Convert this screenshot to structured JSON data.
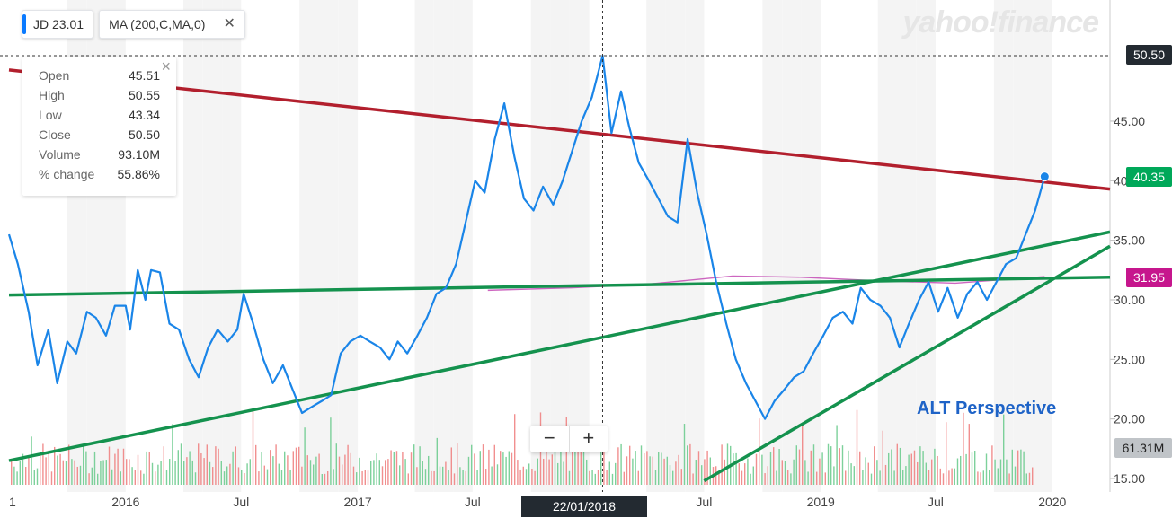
{
  "legend": {
    "symbol": "JD",
    "symbol_value": "23.01",
    "indicator": "MA (200,C,MA,0)",
    "close_icon": "close-x"
  },
  "tooltip": {
    "rows": [
      {
        "label": "Open",
        "value": "45.51"
      },
      {
        "label": "High",
        "value": "50.55"
      },
      {
        "label": "Low",
        "value": "43.34"
      },
      {
        "label": "Close",
        "value": "50.50"
      },
      {
        "label": "Volume",
        "value": "93.10M"
      },
      {
        "label": "% change",
        "value": "55.86%"
      }
    ]
  },
  "watermark": "yahoo!finance",
  "price_tags": {
    "crosshair": "50.50",
    "last": "40.35",
    "ma": "31.95",
    "volume": "61.31M"
  },
  "annotation": "ALT Perspective",
  "crosshair_date": "22/01/2018",
  "zoom": {
    "minus": "−",
    "plus": "+"
  },
  "colors": {
    "price_line": "#1a85e8",
    "ma_line": "#c040b0",
    "resistance_line": "#b21f2d",
    "support_line": "#14924e",
    "up_volume": "#66c98a",
    "down_volume": "#ee7b7b",
    "tag_green": "#00a859",
    "tag_magenta": "#c6168d",
    "tag_dark": "#232a31",
    "tag_gray": "#c0c4c8"
  },
  "chart_data": {
    "type": "line",
    "ylim": [
      15,
      51
    ],
    "y_ticks": [
      15,
      20,
      25,
      30,
      35,
      40,
      45
    ],
    "y_tick_labels": [
      "15.00",
      "20.00",
      "25.00",
      "30.00",
      "35.00",
      "40.00",
      "45.00"
    ],
    "x_tick_labels": [
      "1",
      "2016",
      "Jul",
      "2017",
      "Jul",
      "2018",
      "Jul",
      "2019",
      "Jul",
      "2020"
    ],
    "x_tick_dates": [
      "2015-07-01",
      "2016-01-01",
      "2016-07-01",
      "2017-01-01",
      "2017-07-01",
      "2018-01-01",
      "2018-07-01",
      "2019-01-01",
      "2019-07-01",
      "2020-01-01"
    ],
    "xlim": [
      "2015-07-01",
      "2020-04-01"
    ],
    "series": [
      {
        "points": [
          [
            "2015-07-01",
            35.5
          ],
          [
            "2015-07-15",
            33.0
          ],
          [
            "2015-08-01",
            29.0
          ],
          [
            "2015-08-15",
            24.5
          ],
          [
            "2015-09-01",
            27.5
          ],
          [
            "2015-09-15",
            23.0
          ],
          [
            "2015-10-01",
            26.5
          ],
          [
            "2015-10-15",
            25.5
          ],
          [
            "2015-11-01",
            29.0
          ],
          [
            "2015-11-15",
            28.5
          ],
          [
            "2015-12-01",
            27.0
          ],
          [
            "2015-12-15",
            29.5
          ],
          [
            "2016-01-01",
            29.5
          ],
          [
            "2016-01-08",
            27.5
          ],
          [
            "2016-01-20",
            32.5
          ],
          [
            "2016-02-01",
            30.0
          ],
          [
            "2016-02-10",
            32.5
          ],
          [
            "2016-02-24",
            32.3
          ],
          [
            "2016-03-10",
            28.0
          ],
          [
            "2016-03-25",
            27.5
          ],
          [
            "2016-04-10",
            25.0
          ],
          [
            "2016-04-25",
            23.5
          ],
          [
            "2016-05-10",
            26.0
          ],
          [
            "2016-05-25",
            27.5
          ],
          [
            "2016-06-10",
            26.5
          ],
          [
            "2016-06-25",
            27.5
          ],
          [
            "2016-07-05",
            30.5
          ],
          [
            "2016-07-20",
            28.0
          ],
          [
            "2016-08-05",
            25.0
          ],
          [
            "2016-08-20",
            23.0
          ],
          [
            "2016-09-05",
            24.5
          ],
          [
            "2016-09-20",
            22.5
          ],
          [
            "2016-10-05",
            20.5
          ],
          [
            "2016-10-20",
            21.0
          ],
          [
            "2016-11-05",
            21.5
          ],
          [
            "2016-11-20",
            22.0
          ],
          [
            "2016-12-05",
            25.5
          ],
          [
            "2016-12-20",
            26.5
          ],
          [
            "2017-01-05",
            27.0
          ],
          [
            "2017-01-20",
            26.5
          ],
          [
            "2017-02-05",
            26.0
          ],
          [
            "2017-02-20",
            25.0
          ],
          [
            "2017-03-05",
            26.5
          ],
          [
            "2017-03-20",
            25.5
          ],
          [
            "2017-04-05",
            27.0
          ],
          [
            "2017-04-20",
            28.5
          ],
          [
            "2017-05-05",
            30.5
          ],
          [
            "2017-05-20",
            31.0
          ],
          [
            "2017-06-05",
            33.0
          ],
          [
            "2017-06-20",
            36.5
          ],
          [
            "2017-07-05",
            40.0
          ],
          [
            "2017-07-20",
            39.0
          ],
          [
            "2017-08-05",
            43.5
          ],
          [
            "2017-08-20",
            46.5
          ],
          [
            "2017-09-05",
            42.0
          ],
          [
            "2017-09-20",
            38.5
          ],
          [
            "2017-10-05",
            37.5
          ],
          [
            "2017-10-20",
            39.5
          ],
          [
            "2017-11-05",
            38.0
          ],
          [
            "2017-11-20",
            40.0
          ],
          [
            "2017-12-05",
            42.5
          ],
          [
            "2017-12-20",
            45.0
          ],
          [
            "2018-01-05",
            47.0
          ],
          [
            "2018-01-22",
            50.5
          ],
          [
            "2018-02-05",
            44.0
          ],
          [
            "2018-02-20",
            47.5
          ],
          [
            "2018-03-05",
            44.5
          ],
          [
            "2018-03-20",
            41.5
          ],
          [
            "2018-04-05",
            40.0
          ],
          [
            "2018-04-20",
            38.5
          ],
          [
            "2018-05-05",
            37.0
          ],
          [
            "2018-05-20",
            36.5
          ],
          [
            "2018-06-05",
            43.5
          ],
          [
            "2018-06-20",
            39.0
          ],
          [
            "2018-07-05",
            35.5
          ],
          [
            "2018-07-20",
            31.5
          ],
          [
            "2018-08-05",
            28.0
          ],
          [
            "2018-08-20",
            25.0
          ],
          [
            "2018-09-05",
            23.0
          ],
          [
            "2018-09-20",
            21.5
          ],
          [
            "2018-10-05",
            20.0
          ],
          [
            "2018-10-20",
            21.5
          ],
          [
            "2018-11-05",
            22.5
          ],
          [
            "2018-11-20",
            23.5
          ],
          [
            "2018-12-05",
            24.0
          ],
          [
            "2018-12-20",
            25.5
          ],
          [
            "2019-01-05",
            27.0
          ],
          [
            "2019-01-20",
            28.5
          ],
          [
            "2019-02-05",
            29.0
          ],
          [
            "2019-02-20",
            28.0
          ],
          [
            "2019-03-05",
            31.0
          ],
          [
            "2019-03-20",
            30.0
          ],
          [
            "2019-04-05",
            29.5
          ],
          [
            "2019-04-20",
            28.5
          ],
          [
            "2019-05-05",
            26.0
          ],
          [
            "2019-05-20",
            28.0
          ],
          [
            "2019-06-05",
            30.0
          ],
          [
            "2019-06-20",
            31.5
          ],
          [
            "2019-07-05",
            29.0
          ],
          [
            "2019-07-20",
            31.0
          ],
          [
            "2019-08-05",
            28.5
          ],
          [
            "2019-08-20",
            30.5
          ],
          [
            "2019-09-05",
            31.5
          ],
          [
            "2019-09-20",
            30.0
          ],
          [
            "2019-10-05",
            31.5
          ],
          [
            "2019-10-20",
            33.0
          ],
          [
            "2019-11-05",
            33.5
          ],
          [
            "2019-11-20",
            35.5
          ],
          [
            "2019-12-05",
            37.5
          ],
          [
            "2019-12-20",
            40.35
          ]
        ]
      },
      {
        "points": [
          [
            "2017-07-25",
            30.8
          ],
          [
            "2017-12-01",
            31.0
          ],
          [
            "2018-04-01",
            31.3
          ],
          [
            "2018-08-15",
            32.0
          ],
          [
            "2018-12-01",
            31.9
          ],
          [
            "2019-04-01",
            31.6
          ],
          [
            "2019-08-01",
            31.4
          ],
          [
            "2019-12-20",
            31.95
          ]
        ]
      }
    ],
    "trend_lines": [
      {
        "from": [
          "2015-07-01",
          49.3
        ],
        "to": [
          "2020-04-01",
          39.3
        ]
      },
      {
        "from": [
          "2015-07-01",
          30.4
        ],
        "to": [
          "2020-04-01",
          31.9
        ]
      },
      {
        "from": [
          "2015-07-01",
          16.5
        ],
        "to": [
          "2020-04-01",
          35.7
        ]
      },
      {
        "from": [
          "2018-07-01",
          14.8
        ],
        "to": [
          "2020-04-01",
          34.5
        ]
      }
    ],
    "crosshair": {
      "x": "2018-01-22",
      "y": 50.5
    }
  }
}
